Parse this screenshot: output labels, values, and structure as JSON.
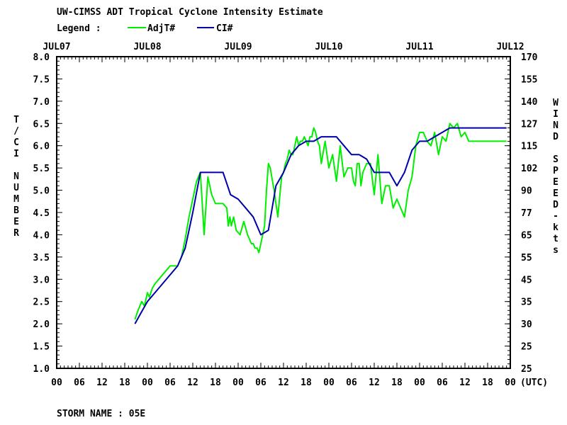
{
  "title": "UW-CIMSS ADT Tropical Cyclone Intensity Estimate",
  "legend": {
    "label": "Legend :",
    "entries": [
      {
        "name": "AdjT#",
        "color": "#00ee00"
      },
      {
        "name": "CI#",
        "color": "#0000aa"
      }
    ]
  },
  "footer": "STORM NAME : 05E",
  "chart_data": {
    "type": "line",
    "title": "UW-CIMSS ADT Tropical Cyclone Intensity Estimate",
    "xlabel": "(UTC)",
    "ylabel": "T/CI NUMBER",
    "ylabel_right": "WIND SPEED-kts",
    "xlim": [
      0,
      120
    ],
    "ylim": [
      1.0,
      8.0
    ],
    "date_ticks": [
      "JUL07",
      "JUL08",
      "JUL09",
      "JUL10",
      "JUL11",
      "JUL12"
    ],
    "x_tick_labels": [
      "00",
      "06",
      "12",
      "18",
      "00",
      "06",
      "12",
      "18",
      "00",
      "06",
      "12",
      "18",
      "00",
      "06",
      "12",
      "18",
      "00",
      "06",
      "12",
      "18",
      "00"
    ],
    "y_ticks": [
      "1.0",
      "1.5",
      "2.0",
      "2.5",
      "3.0",
      "3.5",
      "4.0",
      "4.5",
      "5.0",
      "5.5",
      "6.0",
      "6.5",
      "7.0",
      "7.5",
      "8.0"
    ],
    "y_right_ticks": [
      "25",
      "25",
      "30",
      "35",
      "45",
      "55",
      "65",
      "77",
      "90",
      "102",
      "115",
      "127",
      "140",
      "155",
      "170"
    ],
    "grid": false,
    "series": [
      {
        "name": "AdjT#",
        "color": "#00ee00",
        "x": [
          20.7,
          21.5,
          22.5,
          23.2,
          24.0,
          24.5,
          25.3,
          26.0,
          27.0,
          28.0,
          29.0,
          30.0,
          31.0,
          32.0,
          33.0,
          34.0,
          35.0,
          36.0,
          37.0,
          38.0,
          39.0,
          40.0,
          41.0,
          42.0,
          43.0,
          44.0,
          45.0,
          45.4,
          45.8,
          46.2,
          46.8,
          47.5,
          48.5,
          49.5,
          50.5,
          51.5,
          52.0,
          52.5,
          53.0,
          53.5,
          54.5,
          55.0,
          55.5,
          56.0,
          56.5,
          57.5,
          58.5,
          59.5,
          60.0,
          60.5,
          61.0,
          61.5,
          62.0,
          62.5,
          63.0,
          63.5,
          64.0,
          64.5,
          65.0,
          65.5,
          66.0,
          66.5,
          67.0,
          67.5,
          68.0,
          68.5,
          69.0,
          69.5,
          70.0,
          71.0,
          72.0,
          73.0,
          74.0,
          75.0,
          76.0,
          77.0,
          78.0,
          78.5,
          79.0,
          79.5,
          80.0,
          80.5,
          81.0,
          82.0,
          83.0,
          84.0,
          85.0,
          86.0,
          87.0,
          88.0,
          89.0,
          90.0,
          91.0,
          92.0,
          93.0,
          94.0,
          95.0,
          96.0,
          97.0,
          98.0,
          99.0,
          100.0,
          101.0,
          102.0,
          103.0,
          104.0,
          105.0,
          106.0,
          107.0,
          108.0,
          109.0,
          110.0,
          111.0,
          112.0,
          113.0,
          114.0,
          115.0,
          116.0,
          117.0,
          118.0,
          119.0
        ],
        "y": [
          2.1,
          2.3,
          2.5,
          2.4,
          2.7,
          2.6,
          2.8,
          2.9,
          3.0,
          3.1,
          3.2,
          3.3,
          3.3,
          3.3,
          3.5,
          3.9,
          4.4,
          4.8,
          5.2,
          5.4,
          4.0,
          5.3,
          4.9,
          4.7,
          4.7,
          4.7,
          4.6,
          4.2,
          4.4,
          4.2,
          4.4,
          4.1,
          4.0,
          4.3,
          4.0,
          3.8,
          3.8,
          3.7,
          3.7,
          3.6,
          4.0,
          4.2,
          5.0,
          5.6,
          5.5,
          5.0,
          4.4,
          5.3,
          5.4,
          5.6,
          5.7,
          5.9,
          5.8,
          5.8,
          6.0,
          6.2,
          6.0,
          6.1,
          6.1,
          6.2,
          6.1,
          6.0,
          6.2,
          6.2,
          6.4,
          6.3,
          6.1,
          6.0,
          5.6,
          6.1,
          5.5,
          5.8,
          5.2,
          6.0,
          5.3,
          5.5,
          5.5,
          5.2,
          5.1,
          5.6,
          5.6,
          5.1,
          5.4,
          5.6,
          5.6,
          4.9,
          5.8,
          4.7,
          5.1,
          5.1,
          4.6,
          4.8,
          4.6,
          4.4,
          5.0,
          5.3,
          6.0,
          6.3,
          6.3,
          6.1,
          6.0,
          6.3,
          5.8,
          6.2,
          6.1,
          6.5,
          6.4,
          6.5,
          6.2,
          6.3,
          6.1,
          6.1,
          6.1,
          6.1,
          6.1,
          6.1,
          6.1,
          6.1,
          6.1,
          6.1,
          6.1
        ]
      },
      {
        "name": "CI#",
        "color": "#0000aa",
        "x": [
          20.7,
          22.0,
          24.0,
          26.0,
          28.0,
          30.0,
          32.0,
          34.0,
          36.0,
          38.0,
          40.0,
          42.0,
          44.0,
          46.0,
          48.0,
          50.0,
          52.0,
          54.0,
          56.0,
          58.0,
          60.0,
          62.0,
          64.0,
          66.0,
          68.0,
          70.0,
          72.0,
          74.0,
          76.0,
          78.0,
          80.0,
          82.0,
          84.0,
          86.0,
          88.0,
          90.0,
          92.0,
          94.0,
          96.0,
          98.0,
          100.0,
          102.0,
          104.0,
          106.0,
          108.0,
          110.0,
          112.0,
          114.0,
          116.0,
          118.0,
          119.0
        ],
        "y": [
          2.0,
          2.2,
          2.5,
          2.7,
          2.9,
          3.1,
          3.3,
          3.7,
          4.5,
          5.4,
          5.4,
          5.4,
          5.4,
          4.9,
          4.8,
          4.6,
          4.4,
          4.0,
          4.1,
          5.1,
          5.4,
          5.8,
          6.0,
          6.1,
          6.1,
          6.2,
          6.2,
          6.2,
          6.0,
          5.8,
          5.8,
          5.7,
          5.4,
          5.4,
          5.4,
          5.1,
          5.4,
          5.9,
          6.1,
          6.1,
          6.2,
          6.3,
          6.4,
          6.4,
          6.4,
          6.4,
          6.4,
          6.4,
          6.4,
          6.4,
          6.4
        ]
      }
    ]
  }
}
